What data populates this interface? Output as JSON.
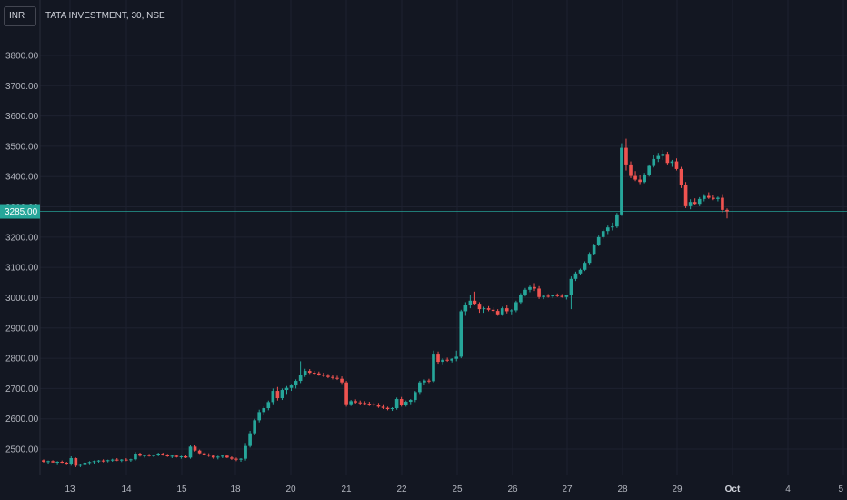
{
  "header": {
    "currency": "INR",
    "title": "TATA INVESTMENT, 30, NSE"
  },
  "colors": {
    "background": "#131722",
    "grid": "#1e2230",
    "up": "#26a69a",
    "down": "#ef5350",
    "axis_text": "#b2b5be",
    "price_line": "#26a69a"
  },
  "chart_data": {
    "type": "candlestick",
    "title": "TATA INVESTMENT, 30, NSE",
    "currency": "INR",
    "y_ticks": [
      2500,
      2600,
      2700,
      2800,
      2900,
      3000,
      3100,
      3200,
      3300,
      3400,
      3500,
      3600,
      3700,
      3800
    ],
    "y_tick_labels": [
      "2500.00",
      "2600.00",
      "2700.00",
      "2800.00",
      "2900.00",
      "3000.00",
      "3100.00",
      "3200.00",
      "3300.00",
      "3400.00",
      "3500.00",
      "3600.00",
      "3700.00",
      "3800.00"
    ],
    "ylim": [
      2420,
      3900
    ],
    "x_labels": [
      "13",
      "14",
      "15",
      "18",
      "20",
      "21",
      "22",
      "25",
      "26",
      "27",
      "28",
      "29",
      "Oct",
      "4",
      "5"
    ],
    "x_label_bold": "Oct",
    "current_price": 3285,
    "current_price_label": "3285.00",
    "grid": true,
    "candles": [
      [
        2463,
        2466,
        2455,
        2458
      ],
      [
        2458,
        2462,
        2452,
        2460
      ],
      [
        2460,
        2463,
        2455,
        2456
      ],
      [
        2456,
        2460,
        2450,
        2458
      ],
      [
        2458,
        2462,
        2454,
        2455
      ],
      [
        2455,
        2458,
        2450,
        2452
      ],
      [
        2452,
        2476,
        2445,
        2470
      ],
      [
        2470,
        2472,
        2440,
        2445
      ],
      [
        2445,
        2452,
        2440,
        2450
      ],
      [
        2450,
        2458,
        2446,
        2455
      ],
      [
        2455,
        2460,
        2450,
        2457
      ],
      [
        2457,
        2462,
        2452,
        2460
      ],
      [
        2460,
        2464,
        2455,
        2462
      ],
      [
        2462,
        2466,
        2456,
        2460
      ],
      [
        2460,
        2465,
        2456,
        2463
      ],
      [
        2463,
        2468,
        2458,
        2465
      ],
      [
        2465,
        2470,
        2460,
        2462
      ],
      [
        2462,
        2467,
        2457,
        2465
      ],
      [
        2465,
        2470,
        2460,
        2463
      ],
      [
        2463,
        2468,
        2458,
        2466
      ],
      [
        2466,
        2490,
        2462,
        2485
      ],
      [
        2485,
        2488,
        2475,
        2478
      ],
      [
        2478,
        2482,
        2472,
        2480
      ],
      [
        2480,
        2484,
        2475,
        2477
      ],
      [
        2477,
        2482,
        2473,
        2480
      ],
      [
        2480,
        2488,
        2476,
        2485
      ],
      [
        2485,
        2488,
        2478,
        2480
      ],
      [
        2480,
        2484,
        2474,
        2476
      ],
      [
        2476,
        2480,
        2470,
        2478
      ],
      [
        2478,
        2482,
        2472,
        2474
      ],
      [
        2474,
        2478,
        2468,
        2476
      ],
      [
        2476,
        2480,
        2470,
        2472
      ],
      [
        2472,
        2515,
        2468,
        2508
      ],
      [
        2508,
        2512,
        2492,
        2495
      ],
      [
        2495,
        2498,
        2484,
        2486
      ],
      [
        2486,
        2490,
        2478,
        2482
      ],
      [
        2482,
        2486,
        2474,
        2478
      ],
      [
        2478,
        2482,
        2468,
        2472
      ],
      [
        2472,
        2478,
        2466,
        2475
      ],
      [
        2475,
        2482,
        2470,
        2478
      ],
      [
        2478,
        2482,
        2470,
        2472
      ],
      [
        2472,
        2476,
        2464,
        2468
      ],
      [
        2468,
        2472,
        2460,
        2465
      ],
      [
        2465,
        2470,
        2458,
        2468
      ],
      [
        2468,
        2520,
        2462,
        2510
      ],
      [
        2510,
        2560,
        2505,
        2552
      ],
      [
        2552,
        2600,
        2548,
        2595
      ],
      [
        2595,
        2630,
        2588,
        2622
      ],
      [
        2622,
        2640,
        2612,
        2635
      ],
      [
        2635,
        2660,
        2628,
        2655
      ],
      [
        2655,
        2700,
        2648,
        2692
      ],
      [
        2692,
        2705,
        2660,
        2668
      ],
      [
        2668,
        2700,
        2662,
        2695
      ],
      [
        2695,
        2708,
        2682,
        2702
      ],
      [
        2702,
        2715,
        2692,
        2710
      ],
      [
        2710,
        2730,
        2700,
        2725
      ],
      [
        2725,
        2790,
        2718,
        2745
      ],
      [
        2745,
        2765,
        2738,
        2758
      ],
      [
        2758,
        2764,
        2748,
        2752
      ],
      [
        2752,
        2758,
        2744,
        2750
      ],
      [
        2750,
        2756,
        2742,
        2746
      ],
      [
        2746,
        2752,
        2738,
        2742
      ],
      [
        2742,
        2748,
        2734,
        2738
      ],
      [
        2738,
        2745,
        2730,
        2735
      ],
      [
        2735,
        2742,
        2728,
        2732
      ],
      [
        2732,
        2740,
        2715,
        2720
      ],
      [
        2720,
        2725,
        2640,
        2648
      ],
      [
        2648,
        2662,
        2642,
        2658
      ],
      [
        2658,
        2664,
        2650,
        2654
      ],
      [
        2654,
        2660,
        2646,
        2652
      ],
      [
        2652,
        2658,
        2644,
        2650
      ],
      [
        2650,
        2656,
        2642,
        2648
      ],
      [
        2648,
        2654,
        2640,
        2646
      ],
      [
        2646,
        2652,
        2636,
        2640
      ],
      [
        2640,
        2648,
        2632,
        2636
      ],
      [
        2636,
        2640,
        2628,
        2632
      ],
      [
        2632,
        2638,
        2626,
        2635
      ],
      [
        2635,
        2670,
        2630,
        2665
      ],
      [
        2665,
        2672,
        2640,
        2645
      ],
      [
        2645,
        2660,
        2640,
        2656
      ],
      [
        2656,
        2665,
        2648,
        2662
      ],
      [
        2662,
        2692,
        2655,
        2688
      ],
      [
        2688,
        2725,
        2682,
        2720
      ],
      [
        2720,
        2730,
        2712,
        2726
      ],
      [
        2726,
        2732,
        2718,
        2724
      ],
      [
        2724,
        2825,
        2720,
        2815
      ],
      [
        2815,
        2822,
        2782,
        2788
      ],
      [
        2788,
        2800,
        2780,
        2795
      ],
      [
        2795,
        2802,
        2788,
        2792
      ],
      [
        2792,
        2800,
        2786,
        2798
      ],
      [
        2798,
        2825,
        2790,
        2805
      ],
      [
        2805,
        2960,
        2800,
        2955
      ],
      [
        2955,
        2985,
        2940,
        2975
      ],
      [
        2975,
        3010,
        2965,
        2990
      ],
      [
        2990,
        3020,
        2975,
        2980
      ],
      [
        2980,
        2985,
        2950,
        2962
      ],
      [
        2962,
        2970,
        2950,
        2965
      ],
      [
        2965,
        2972,
        2955,
        2960
      ],
      [
        2960,
        2968,
        2950,
        2956
      ],
      [
        2956,
        2962,
        2940,
        2945
      ],
      [
        2945,
        2970,
        2940,
        2965
      ],
      [
        2965,
        2975,
        2948,
        2955
      ],
      [
        2955,
        2962,
        2945,
        2958
      ],
      [
        2958,
        2990,
        2952,
        2985
      ],
      [
        2985,
        3015,
        2980,
        3010
      ],
      [
        3010,
        3032,
        3004,
        3026
      ],
      [
        3026,
        3040,
        3018,
        3035
      ],
      [
        3035,
        3048,
        3022,
        3030
      ],
      [
        3030,
        3038,
        2996,
        3002
      ],
      [
        3002,
        3010,
        2995,
        3006
      ],
      [
        3006,
        3012,
        3000,
        3004
      ],
      [
        3004,
        3010,
        2998,
        3008
      ],
      [
        3008,
        3014,
        3002,
        3006
      ],
      [
        3006,
        3012,
        3000,
        3002
      ],
      [
        3002,
        3010,
        2994,
        3008
      ],
      [
        3008,
        3070,
        2962,
        3062
      ],
      [
        3062,
        3086,
        3055,
        3080
      ],
      [
        3080,
        3096,
        3074,
        3092
      ],
      [
        3092,
        3120,
        3088,
        3115
      ],
      [
        3115,
        3150,
        3110,
        3145
      ],
      [
        3145,
        3178,
        3140,
        3175
      ],
      [
        3175,
        3205,
        3170,
        3200
      ],
      [
        3200,
        3225,
        3195,
        3220
      ],
      [
        3220,
        3238,
        3210,
        3232
      ],
      [
        3232,
        3248,
        3222,
        3235
      ],
      [
        3235,
        3280,
        3230,
        3275
      ],
      [
        3275,
        3510,
        3270,
        3495
      ],
      [
        3495,
        3525,
        3420,
        3440
      ],
      [
        3440,
        3450,
        3395,
        3402
      ],
      [
        3402,
        3418,
        3385,
        3390
      ],
      [
        3390,
        3405,
        3375,
        3382
      ],
      [
        3382,
        3412,
        3378,
        3405
      ],
      [
        3405,
        3440,
        3400,
        3435
      ],
      [
        3435,
        3470,
        3430,
        3458
      ],
      [
        3458,
        3478,
        3448,
        3468
      ],
      [
        3468,
        3488,
        3455,
        3475
      ],
      [
        3475,
        3482,
        3440,
        3445
      ],
      [
        3445,
        3455,
        3432,
        3450
      ],
      [
        3450,
        3460,
        3420,
        3425
      ],
      [
        3425,
        3432,
        3362,
        3372
      ],
      [
        3372,
        3382,
        3296,
        3302
      ],
      [
        3302,
        3325,
        3292,
        3316
      ],
      [
        3316,
        3328,
        3305,
        3310
      ],
      [
        3310,
        3332,
        3302,
        3326
      ],
      [
        3326,
        3342,
        3318,
        3336
      ],
      [
        3336,
        3348,
        3326,
        3330
      ],
      [
        3330,
        3340,
        3322,
        3326
      ],
      [
        3326,
        3334,
        3318,
        3330
      ],
      [
        3330,
        3342,
        3282,
        3290
      ],
      [
        3290,
        3295,
        3262,
        3285
      ]
    ]
  }
}
